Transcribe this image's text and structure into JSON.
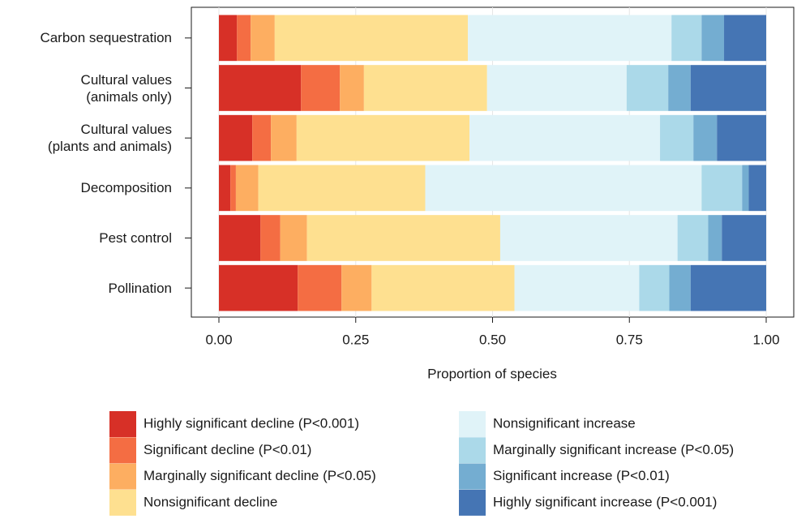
{
  "chart_data": {
    "type": "stacked-barh",
    "categories": [
      "Carbon sequestration",
      "Cultural values\n(animals only)",
      "Cultural values\n(plants and animals)",
      "Decomposition",
      "Pest control",
      "Pollination"
    ],
    "xlabel": "Proportion of species",
    "xlim": [
      0,
      1
    ],
    "xticks": [
      {
        "value": 0,
        "label": "0.00"
      },
      {
        "value": 0.25,
        "label": "0.25"
      },
      {
        "value": 0.5,
        "label": "0.50"
      },
      {
        "value": 0.75,
        "label": "0.75"
      },
      {
        "value": 1,
        "label": "1.00"
      }
    ],
    "grid": true,
    "series": [
      {
        "name": "Highly significant decline (P<0.001)",
        "color": "#d73027",
        "values": [
          0.033,
          0.15,
          0.061,
          0.021,
          0.076,
          0.144
        ]
      },
      {
        "name": "Significant decline (P<0.01)",
        "color": "#f46d43",
        "values": [
          0.025,
          0.071,
          0.034,
          0.01,
          0.036,
          0.08
        ]
      },
      {
        "name": "Marginally significant decline (P<0.05)",
        "color": "#fdae61",
        "values": [
          0.044,
          0.044,
          0.047,
          0.041,
          0.049,
          0.055
        ]
      },
      {
        "name": "Nonsignificant decline",
        "color": "#fee090",
        "values": [
          0.353,
          0.225,
          0.316,
          0.305,
          0.353,
          0.261
        ]
      },
      {
        "name": "Nonsignificant increase",
        "color": "#e0f3f8",
        "values": [
          0.372,
          0.255,
          0.348,
          0.505,
          0.324,
          0.228
        ]
      },
      {
        "name": "Marginally significant increase (P<0.05)",
        "color": "#abd9e9",
        "values": [
          0.055,
          0.076,
          0.061,
          0.074,
          0.056,
          0.055
        ]
      },
      {
        "name": "Significant increase (P<0.01)",
        "color": "#74add1",
        "values": [
          0.041,
          0.041,
          0.043,
          0.012,
          0.025,
          0.039
        ]
      },
      {
        "name": "Highly significant increase (P<0.001)",
        "color": "#4575b4",
        "values": [
          0.077,
          0.138,
          0.09,
          0.032,
          0.081,
          0.138
        ]
      }
    ]
  }
}
